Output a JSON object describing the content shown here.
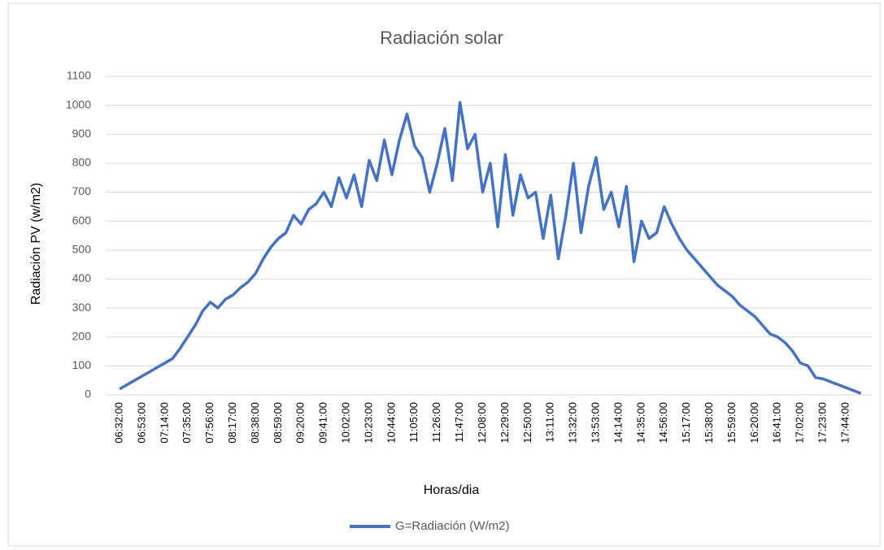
{
  "chart_data": {
    "type": "line",
    "title": "Radiación solar",
    "x_label": "Horas/dia",
    "y_label": "Radiación PV (w/m2)",
    "categories": [
      "06:32:00",
      null,
      null,
      "06:53:00",
      null,
      null,
      "07:14:00",
      null,
      null,
      "07:35:00",
      null,
      null,
      "07:56:00",
      null,
      null,
      "08:17:00",
      null,
      null,
      "08:38:00",
      null,
      null,
      "08:59:00",
      null,
      null,
      "09:20:00",
      null,
      null,
      "09:41:00",
      null,
      null,
      "10:02:00",
      null,
      null,
      "10:23:00",
      null,
      null,
      "10:44:00",
      null,
      null,
      "11:05:00",
      null,
      null,
      "11:26:00",
      null,
      null,
      "11:47:00",
      null,
      null,
      "12:08:00",
      null,
      null,
      "12:29:00",
      null,
      null,
      "12:50:00",
      null,
      null,
      "13:11:00",
      null,
      null,
      "13:32:00",
      null,
      null,
      "13:53:00",
      null,
      null,
      "14:14:00",
      null,
      null,
      "14:35:00",
      null,
      null,
      "14:56:00",
      null,
      null,
      "15:17:00",
      null,
      null,
      "15:38:00",
      null,
      null,
      "15:59:00",
      null,
      null,
      "16:20:00",
      null,
      null,
      "16:41:00",
      null,
      null,
      "17:02:00",
      null,
      null,
      "17:23:00",
      null,
      null,
      "17:44:00",
      null,
      null
    ],
    "series": [
      {
        "name": "G=Radiación (W/m2)",
        "color": "#4472c4",
        "values": [
          20,
          35,
          50,
          65,
          80,
          95,
          110,
          125,
          160,
          200,
          240,
          290,
          320,
          300,
          330,
          345,
          370,
          390,
          420,
          470,
          510,
          540,
          560,
          620,
          590,
          640,
          660,
          700,
          650,
          750,
          680,
          760,
          650,
          810,
          740,
          880,
          760,
          880,
          970,
          860,
          820,
          700,
          800,
          920,
          740,
          1010,
          850,
          900,
          700,
          800,
          580,
          830,
          620,
          760,
          680,
          700,
          540,
          690,
          470,
          620,
          800,
          560,
          720,
          820,
          640,
          700,
          580,
          720,
          460,
          600,
          540,
          560,
          650,
          590,
          540,
          500,
          470,
          440,
          410,
          380,
          360,
          340,
          310,
          290,
          270,
          240,
          210,
          200,
          180,
          150,
          110,
          100,
          60,
          55,
          45,
          35,
          25,
          15,
          5
        ]
      }
    ],
    "ylim": [
      0,
      1100
    ],
    "yticks": [
      0,
      100,
      200,
      300,
      400,
      500,
      600,
      700,
      800,
      900,
      1000,
      1100
    ],
    "grid": true,
    "legend": "bottom"
  }
}
